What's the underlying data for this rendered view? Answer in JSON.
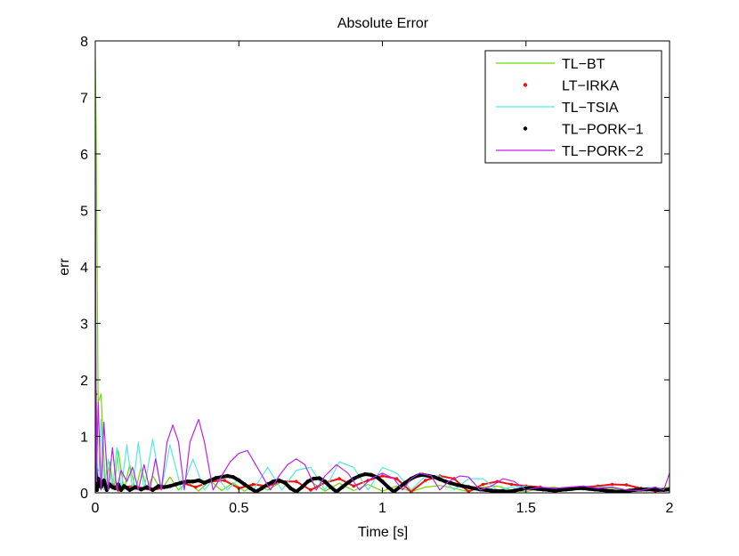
{
  "chart_data": {
    "type": "line",
    "title": "Absolute Error",
    "xlabel": "Time [s]",
    "ylabel": "err",
    "xlim": [
      0,
      2
    ],
    "ylim": [
      0,
      8
    ],
    "xticks": [
      0,
      0.5,
      1,
      1.5,
      2
    ],
    "xtick_labels": [
      "0",
      "0.5",
      "1",
      "1.5",
      "2"
    ],
    "yticks": [
      0,
      1,
      2,
      3,
      4,
      5,
      6,
      7,
      8
    ],
    "ytick_labels": [
      "0",
      "1",
      "2",
      "3",
      "4",
      "5",
      "6",
      "7",
      "8"
    ],
    "grid": false,
    "legend_position": "top-right",
    "series": [
      {
        "name": "TL−BT",
        "color": "#66dd00",
        "marker": "line",
        "x": [
          0,
          0.003,
          0.01,
          0.02,
          0.035,
          0.05,
          0.065,
          0.08,
          0.1,
          0.12,
          0.14,
          0.16,
          0.18,
          0.2,
          0.23,
          0.26,
          0.29,
          0.32,
          0.36,
          0.4,
          0.44,
          0.48,
          0.52,
          0.56,
          0.6,
          0.65,
          0.7,
          0.75,
          0.8,
          0.85,
          0.9,
          0.95,
          1.0,
          1.05,
          1.1,
          1.15,
          1.2,
          1.25,
          1.3,
          1.35,
          1.4,
          1.45,
          1.5,
          1.55,
          1.6,
          1.65,
          1.7,
          1.75,
          1.8,
          1.85,
          1.9,
          1.95,
          2.0
        ],
        "y": [
          7.7,
          6.4,
          1.6,
          1.75,
          0.05,
          0.55,
          0.05,
          0.75,
          0.05,
          0.5,
          0.05,
          0.45,
          0.05,
          0.3,
          0.05,
          0.28,
          0.05,
          0.2,
          0.03,
          0.22,
          0.04,
          0.18,
          0.03,
          0.16,
          0.05,
          0.2,
          0.04,
          0.2,
          0.03,
          0.17,
          0.04,
          0.15,
          0.03,
          0.12,
          0.02,
          0.1,
          0.13,
          0.08,
          0.02,
          0.1,
          0.12,
          0.05,
          0.02,
          0.08,
          0.1,
          0.04,
          0.1,
          0.11,
          0.08,
          0.05,
          0.03,
          0.06,
          0.1
        ]
      },
      {
        "name": "LT−IRKA",
        "color": "#ee1111",
        "marker": "dot",
        "x": [
          0,
          0.002,
          0.005,
          0.01,
          0.02,
          0.03,
          0.04,
          0.06,
          0.08,
          0.1,
          0.13,
          0.16,
          0.2,
          0.25,
          0.3,
          0.35,
          0.4,
          0.45,
          0.5,
          0.55,
          0.6,
          0.65,
          0.7,
          0.75,
          0.8,
          0.85,
          0.9,
          0.95,
          1.0,
          1.05,
          1.1,
          1.15,
          1.2,
          1.25,
          1.3,
          1.35,
          1.4,
          1.45,
          1.5,
          1.55,
          1.6,
          1.65,
          1.7,
          1.75,
          1.8,
          1.85,
          1.9,
          1.95,
          2.0
        ],
        "y": [
          1.8,
          1.75,
          0.4,
          0.15,
          0.12,
          0.2,
          0.05,
          0.15,
          0.05,
          0.1,
          0.12,
          0.08,
          0.05,
          0.1,
          0.18,
          0.1,
          0.2,
          0.22,
          0.08,
          0.15,
          0.12,
          0.2,
          0.2,
          0.05,
          0.18,
          0.25,
          0.12,
          0.22,
          0.3,
          0.25,
          0.02,
          0.22,
          0.3,
          0.25,
          0.02,
          0.15,
          0.2,
          0.15,
          0.12,
          0.1,
          0.02,
          0.08,
          0.1,
          0.12,
          0.15,
          0.14,
          0.08,
          0.03,
          0.06
        ]
      },
      {
        "name": "TL−TSIA",
        "color": "#55e8e0",
        "marker": "line",
        "x": [
          0,
          0.003,
          0.01,
          0.02,
          0.03,
          0.045,
          0.06,
          0.075,
          0.09,
          0.11,
          0.13,
          0.15,
          0.17,
          0.2,
          0.23,
          0.26,
          0.3,
          0.34,
          0.38,
          0.42,
          0.46,
          0.5,
          0.55,
          0.6,
          0.65,
          0.7,
          0.75,
          0.8,
          0.85,
          0.9,
          0.95,
          1.0,
          1.05,
          1.1,
          1.15,
          1.2,
          1.25,
          1.3,
          1.35,
          1.4,
          1.45,
          1.5,
          1.55,
          1.6,
          1.65,
          1.7,
          1.75,
          1.8,
          1.85,
          1.9,
          1.95,
          2.0
        ],
        "y": [
          5.0,
          1.0,
          0.05,
          1.3,
          0.05,
          0.6,
          0.05,
          0.8,
          0.05,
          0.85,
          0.05,
          0.9,
          0.05,
          0.95,
          0.05,
          0.85,
          0.05,
          0.6,
          0.05,
          0.3,
          0.05,
          0.25,
          0.05,
          0.45,
          0.05,
          0.4,
          0.45,
          0.05,
          0.55,
          0.45,
          0.05,
          0.45,
          0.35,
          0.05,
          0.3,
          0.3,
          0.05,
          0.25,
          0.25,
          0.05,
          0.1,
          0.12,
          0.05,
          0.05,
          0.1,
          0.05,
          0.1,
          0.1,
          0.05,
          0.08,
          0.1,
          0.05
        ]
      },
      {
        "name": "TL−PORK−1",
        "color": "#000000",
        "marker": "dot",
        "x": [
          0,
          0.003,
          0.006,
          0.01,
          0.015,
          0.02,
          0.03,
          0.04,
          0.05,
          0.06,
          0.07,
          0.08,
          0.09,
          0.1,
          0.12,
          0.14,
          0.16,
          0.18,
          0.2,
          0.22,
          0.24,
          0.26,
          0.28,
          0.3,
          0.32,
          0.34,
          0.36,
          0.38,
          0.4,
          0.42,
          0.44,
          0.46,
          0.48,
          0.5,
          0.52,
          0.54,
          0.56,
          0.58,
          0.6,
          0.62,
          0.64,
          0.66,
          0.68,
          0.7,
          0.72,
          0.74,
          0.76,
          0.78,
          0.8,
          0.82,
          0.84,
          0.86,
          0.88,
          0.9,
          0.92,
          0.94,
          0.96,
          0.98,
          1.0,
          1.02,
          1.04,
          1.06,
          1.08,
          1.1,
          1.12,
          1.14,
          1.16,
          1.18,
          1.2,
          1.22,
          1.24,
          1.26,
          1.28,
          1.3,
          1.32,
          1.34,
          1.36,
          1.38,
          1.4,
          1.42,
          1.44,
          1.46,
          1.48,
          1.5,
          1.52,
          1.54,
          1.56,
          1.58,
          1.6,
          1.62,
          1.64,
          1.66,
          1.68,
          1.7,
          1.72,
          1.74,
          1.76,
          1.78,
          1.8,
          1.82,
          1.84,
          1.86,
          1.88,
          1.9,
          1.92,
          1.94,
          1.96,
          1.98,
          2.0
        ],
        "y": [
          0.5,
          0.25,
          0.05,
          0.25,
          0.18,
          0.1,
          0.22,
          0.05,
          0.15,
          0.1,
          0.08,
          0.15,
          0.05,
          0.12,
          0.05,
          0.1,
          0.06,
          0.1,
          0.05,
          0.12,
          0.1,
          0.12,
          0.15,
          0.18,
          0.2,
          0.2,
          0.22,
          0.18,
          0.22,
          0.26,
          0.28,
          0.3,
          0.28,
          0.22,
          0.15,
          0.08,
          0.02,
          0.08,
          0.15,
          0.2,
          0.22,
          0.18,
          0.08,
          0.02,
          0.1,
          0.2,
          0.25,
          0.26,
          0.2,
          0.1,
          0.02,
          0.1,
          0.18,
          0.25,
          0.3,
          0.33,
          0.32,
          0.28,
          0.2,
          0.1,
          0.02,
          0.1,
          0.18,
          0.25,
          0.3,
          0.32,
          0.3,
          0.28,
          0.24,
          0.2,
          0.17,
          0.14,
          0.12,
          0.1,
          0.08,
          0.06,
          0.05,
          0.04,
          0.03,
          0.03,
          0.02,
          0.04,
          0.06,
          0.08,
          0.08,
          0.07,
          0.06,
          0.05,
          0.04,
          0.05,
          0.06,
          0.07,
          0.08,
          0.08,
          0.07,
          0.06,
          0.05,
          0.04,
          0.03,
          0.02,
          0.03,
          0.04,
          0.05,
          0.06,
          0.06,
          0.06,
          0.05,
          0.05,
          0.06
        ]
      },
      {
        "name": "TL−PORK−2",
        "color": "#bb22ee",
        "marker": "line",
        "x": [
          0,
          0.002,
          0.004,
          0.01,
          0.02,
          0.03,
          0.045,
          0.06,
          0.075,
          0.09,
          0.11,
          0.13,
          0.15,
          0.17,
          0.19,
          0.21,
          0.23,
          0.25,
          0.27,
          0.29,
          0.31,
          0.33,
          0.36,
          0.38,
          0.41,
          0.44,
          0.47,
          0.5,
          0.53,
          0.57,
          0.61,
          0.64,
          0.67,
          0.7,
          0.73,
          0.77,
          0.8,
          0.84,
          0.88,
          0.92,
          0.96,
          1.0,
          1.04,
          1.07,
          1.1,
          1.13,
          1.17,
          1.2,
          1.23,
          1.27,
          1.3,
          1.34,
          1.38,
          1.42,
          1.46,
          1.5,
          1.55,
          1.6,
          1.65,
          1.7,
          1.75,
          1.8,
          1.85,
          1.9,
          1.95,
          1.98,
          2.0
        ],
        "y": [
          6.3,
          3.0,
          0.2,
          1.6,
          0.05,
          1.25,
          0.05,
          0.8,
          0.05,
          0.4,
          0.2,
          0.45,
          0.05,
          0.5,
          0.05,
          0.6,
          0.05,
          0.9,
          1.2,
          0.9,
          0.05,
          0.9,
          1.3,
          0.9,
          0.05,
          0.3,
          0.55,
          0.7,
          0.75,
          0.4,
          0.05,
          0.3,
          0.5,
          0.6,
          0.5,
          0.05,
          0.3,
          0.5,
          0.35,
          0.05,
          0.25,
          0.35,
          0.25,
          0.05,
          0.25,
          0.35,
          0.3,
          0.05,
          0.2,
          0.3,
          0.28,
          0.05,
          0.12,
          0.25,
          0.2,
          0.05,
          0.1,
          0.08,
          0.1,
          0.12,
          0.08,
          0.1,
          0.05,
          0.04,
          0.1,
          0.05,
          0.35
        ]
      }
    ]
  }
}
